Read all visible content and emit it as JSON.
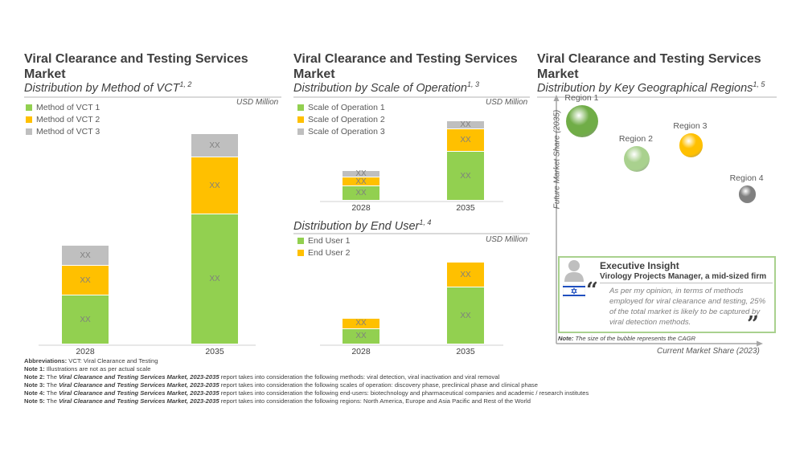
{
  "colors": {
    "green": "#92d050",
    "yellow": "#ffc000",
    "gray": "#bfbfbf",
    "box_border": "#a9d18e"
  },
  "panels": {
    "method": {
      "title": "Viral Clearance and Testing Services Market",
      "subtitle": "Distribution by Method of VCT",
      "subtitle_sup": "1, 2",
      "unit": "USD Million"
    },
    "scale": {
      "title": "Viral Clearance and Testing Services Market",
      "subtitle": "Distribution by Scale of Operation",
      "subtitle_sup": "1, 3",
      "unit": "USD Million"
    },
    "enduser": {
      "subtitle": "Distribution by End User",
      "subtitle_sup": "1, 4",
      "unit": "USD Million"
    },
    "geo": {
      "title": "Viral Clearance and Testing Services Market",
      "subtitle": "Distribution by Key Geographical Regions",
      "subtitle_sup": "1, 5",
      "y_axis_label": "Future Market Share (2035)",
      "x_axis_label": "Current Market Share (2023)",
      "note_label": "Note:",
      "note_text": "The size of the bubble represents the CAGR"
    }
  },
  "insight": {
    "heading": "Executive Insight",
    "role": "Virology Projects Manager, a mid-sized firm",
    "quote": "As per my opinion, in terms of methods employed for viral clearance and testing, 25% of the total market is likely to be captured by viral detection methods.",
    "open_quote": "“",
    "close_quote": "”",
    "flag": "Israel"
  },
  "footnotes": [
    {
      "label": "Abbreviations:",
      "italic": "",
      "text": "VCT: Viral Clearance and Testing"
    },
    {
      "label": "Note 1:",
      "italic": "",
      "text": "Illustrations are not as per actual scale"
    },
    {
      "label": "Note 2:",
      "pre": "The ",
      "italic": "Viral Clearance and Testing Services Market, 2023-2035",
      "text": " report takes into consideration the following methods: viral detection, viral inactivation and viral removal"
    },
    {
      "label": "Note 3:",
      "pre": "The ",
      "italic": "Viral Clearance and Testing Services Market, 2023-2035",
      "text": " report takes into consideration the following scales of operation: discovery phase, preclinical phase and clinical phase"
    },
    {
      "label": "Note 4:",
      "pre": "The ",
      "italic": "Viral Clearance and Testing Services Market, 2023-2035",
      "text": " report takes into consideration the following end-users: biotechnology and pharmaceutical companies and academic / research institutes"
    },
    {
      "label": "Note 5:",
      "pre": "The ",
      "italic": "Viral Clearance and Testing Services Market, 2023-2035",
      "text": " report takes into consideration the following regions: North America, Europe and Asia Pacific and Rest of the World"
    }
  ],
  "chart_data": [
    {
      "id": "method",
      "type": "bar",
      "stacked": true,
      "title": "Distribution by Method of VCT",
      "ylabel": "USD Million",
      "categories": [
        "2028",
        "2035"
      ],
      "ylim": [
        0,
        262
      ],
      "legend_position": "top-left",
      "series": [
        {
          "name": "Method of VCT 1",
          "color": "#92d050",
          "values": [
            61,
            162
          ],
          "labels": [
            "XX",
            "XX"
          ]
        },
        {
          "name": "Method of VCT 2",
          "color": "#ffc000",
          "values": [
            37,
            71
          ],
          "labels": [
            "XX",
            "XX"
          ]
        },
        {
          "name": "Method of VCT 3",
          "color": "#bfbfbf",
          "values": [
            25,
            29
          ],
          "labels": [
            "XX",
            "XX"
          ]
        }
      ]
    },
    {
      "id": "scale",
      "type": "bar",
      "stacked": true,
      "title": "Distribution by Scale of Operation",
      "ylabel": "USD Million",
      "categories": [
        "2028",
        "2035"
      ],
      "ylim": [
        0,
        100
      ],
      "legend_position": "top-left",
      "series": [
        {
          "name": "Scale of Operation 1",
          "color": "#92d050",
          "values": [
            18,
            61
          ],
          "labels": [
            "XX",
            "XX"
          ]
        },
        {
          "name": "Scale of Operation 2",
          "color": "#ffc000",
          "values": [
            11,
            28
          ],
          "labels": [
            "XX",
            "XX"
          ]
        },
        {
          "name": "Scale of Operation 3",
          "color": "#bfbfbf",
          "values": [
            8,
            10
          ],
          "labels": [
            "XX",
            "XX"
          ]
        }
      ]
    },
    {
      "id": "enduser",
      "type": "bar",
      "stacked": true,
      "title": "Distribution by End User",
      "ylabel": "USD Million",
      "categories": [
        "2028",
        "2035"
      ],
      "ylim": [
        0,
        101
      ],
      "legend_position": "top-left",
      "series": [
        {
          "name": "End User 1",
          "color": "#92d050",
          "values": [
            19,
            70
          ],
          "labels": [
            "XX",
            "XX"
          ]
        },
        {
          "name": "End User 2",
          "color": "#ffc000",
          "values": [
            13,
            31
          ],
          "labels": [
            "XX",
            "XX"
          ]
        }
      ]
    },
    {
      "id": "geo",
      "type": "scatter",
      "title": "Distribution by Key Geographical Regions",
      "xlabel": "Current Market Share (2023)",
      "ylabel": "Future Market Share (2035)",
      "xlim": [
        0,
        100
      ],
      "ylim": [
        0,
        100
      ],
      "points": [
        {
          "name": "Region 1",
          "x": 12,
          "y": 88,
          "size": 3,
          "color": "#70ad47"
        },
        {
          "name": "Region 2",
          "x": 37,
          "y": 63,
          "size": 2.4,
          "color": "#a9d18e"
        },
        {
          "name": "Region 3",
          "x": 62,
          "y": 72,
          "size": 2.2,
          "color": "#ffc000"
        },
        {
          "name": "Region 4",
          "x": 88,
          "y": 40,
          "size": 1.6,
          "color": "#808080"
        }
      ]
    }
  ]
}
